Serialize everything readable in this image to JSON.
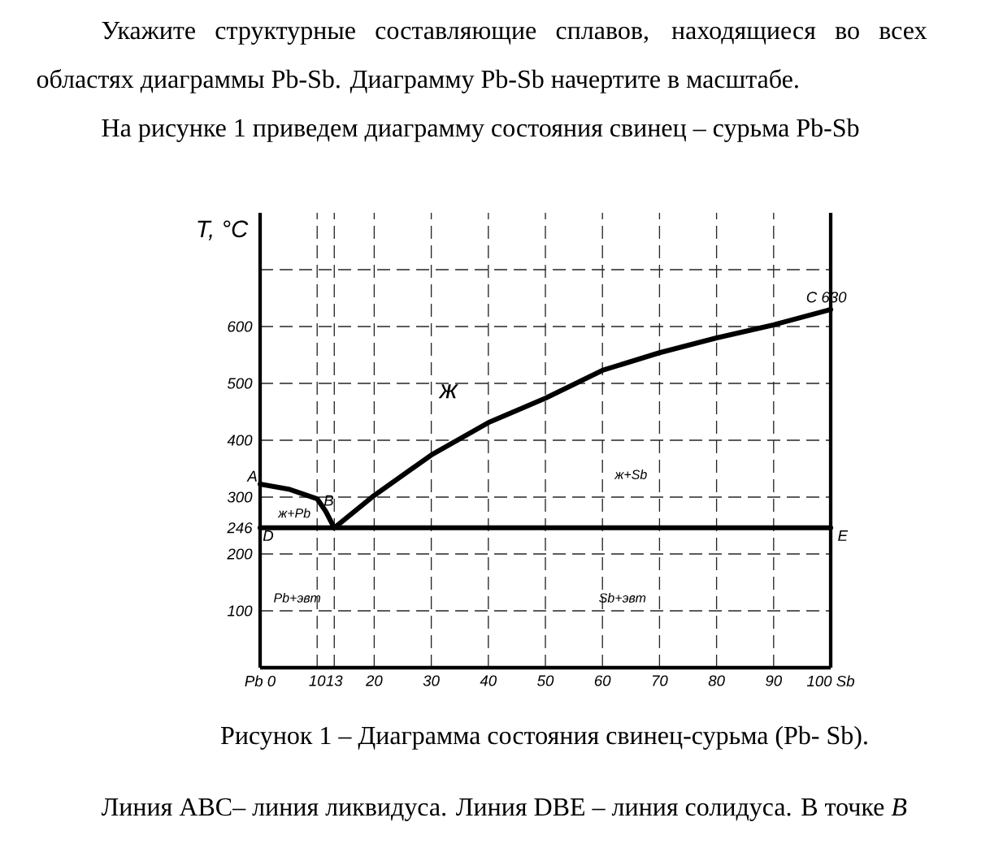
{
  "chart_data": {
    "type": "line",
    "title": "Укажите структурные составляющие сплавов, находящиеся во всех областях диаграммы Pb-Sb. Диаграмму Pb-Sb начертите в масштабе.",
    "subtitle": "На рисунке 1 приведем диаграмму состояния свинец – сурьма Pb-Sb",
    "ylabel": "T, °C",
    "series": [
      {
        "name": null,
        "color": "#000000",
        "x": [
          0,
          5,
          10,
          11.5,
          13,
          20,
          30,
          40,
          50,
          60,
          70,
          80,
          90,
          100
        ],
        "values": [
          323,
          314,
          297,
          275,
          246,
          303,
          374,
          431,
          474,
          523,
          554,
          580,
          603,
          630
        ]
      },
      {
        "name": null,
        "color": "#000000",
        "x": [
          0,
          100
        ],
        "values": [
          246,
          246
        ]
      }
    ],
    "xlim": [
      0,
      100
    ],
    "ylim": [
      0,
      800
    ],
    "xticks": [
      {
        "value": 0,
        "label": "Pb 0"
      },
      10,
      13,
      20,
      30,
      40,
      50,
      60,
      70,
      80,
      90,
      {
        "value": 100,
        "label": "100 Sb"
      }
    ],
    "yticks": [
      100,
      200,
      246,
      300,
      400,
      500,
      600,
      {
        "value": 700,
        "label": null
      }
    ],
    "grid": true,
    "marker": "none",
    "line_style": "solid",
    "annotations": [
      {
        "text": "A",
        "x": 0,
        "y": 323
      },
      {
        "text": "B",
        "x": 13,
        "y": 246
      },
      {
        "text": "C 630",
        "x": 100,
        "y": 630
      },
      {
        "text": "D",
        "x": 0,
        "y": 246
      },
      {
        "text": "E",
        "x": 100,
        "y": 246
      },
      "ж",
      "ж+Sb",
      "ж+Pb",
      "Pb+эвт",
      "Sb+эвт",
      "Рисунок 1 – Диаграмма состояния свинец-сурьма (Pb- Sb).",
      "Линия ABC– линия ликвидуса. Линия DBE – линия солидуса. В точке *B*"
    ]
  }
}
